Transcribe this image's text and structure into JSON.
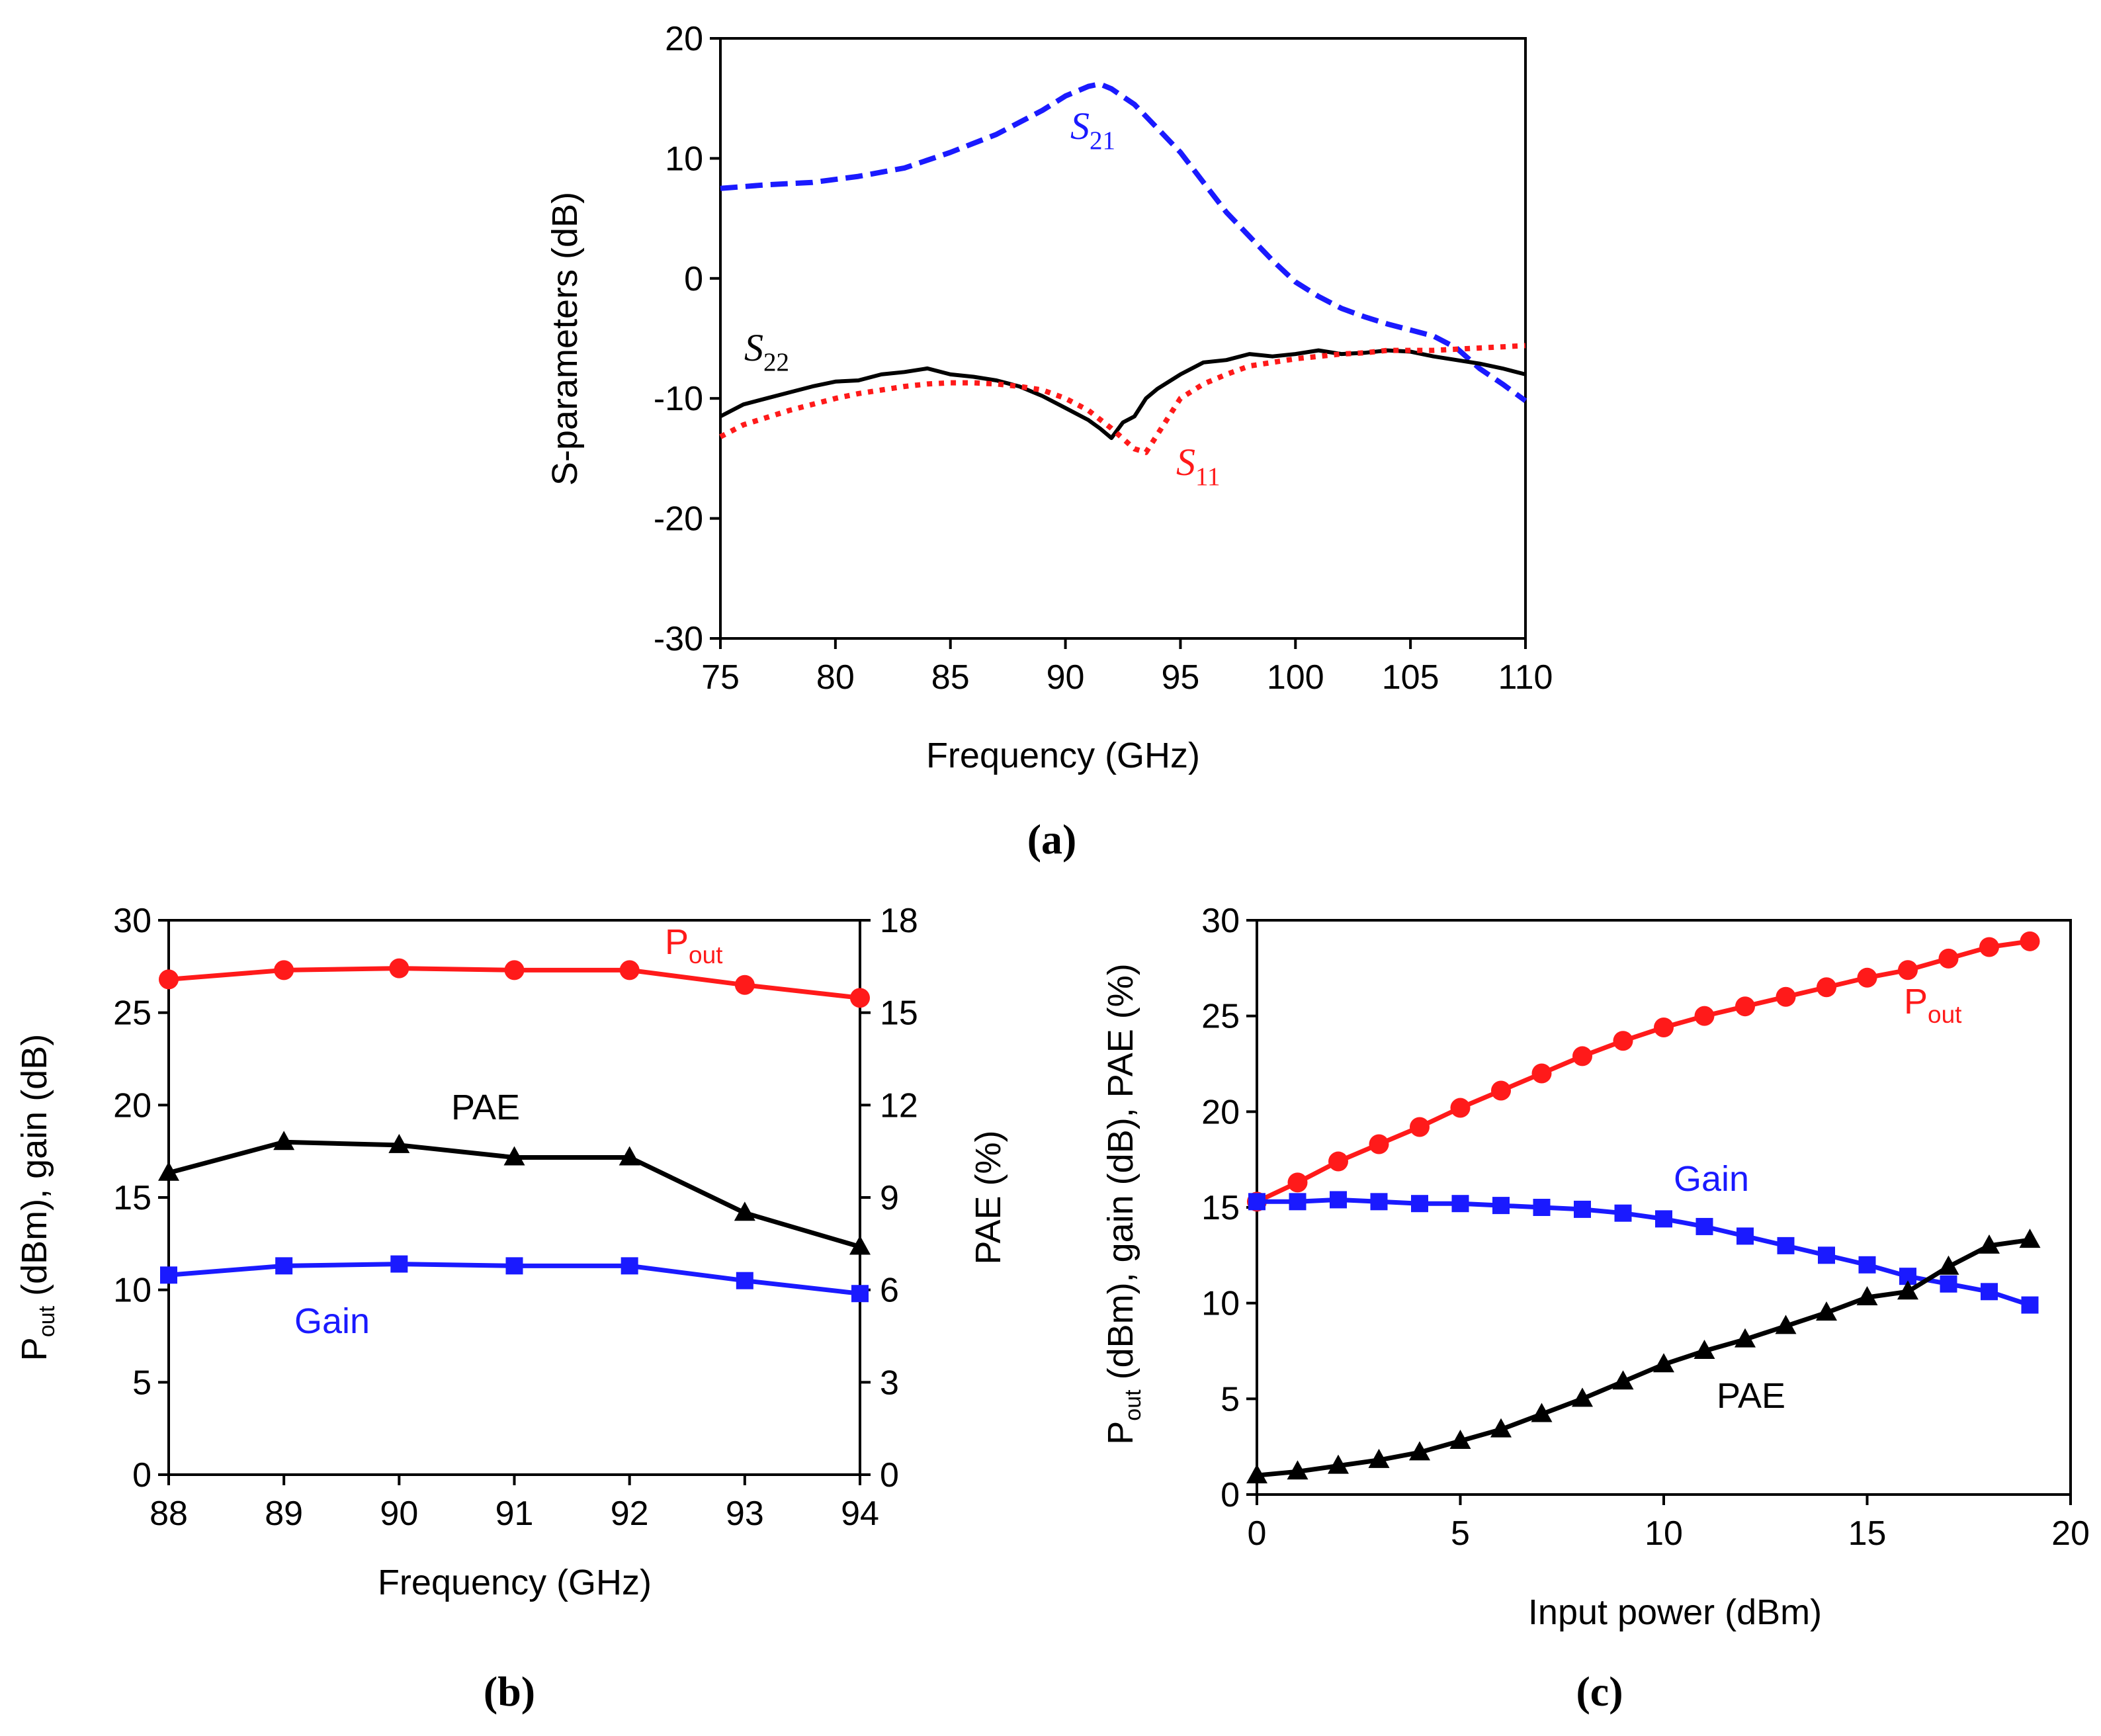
{
  "chart_data": [
    {
      "id": "a",
      "type": "line",
      "panel_label": "(a)",
      "title": "",
      "xlabel": "Frequency (GHz)",
      "ylabel": "S-parameters (dB)",
      "xlim": [
        75,
        110
      ],
      "ylim": [
        -30,
        20
      ],
      "xticks": [
        75,
        80,
        85,
        90,
        95,
        100,
        105,
        110
      ],
      "yticks": [
        -30,
        -20,
        -10,
        0,
        10,
        20
      ],
      "grid": false,
      "series": [
        {
          "name": "S21",
          "label_main": "S",
          "label_sub": "21",
          "color": "#1a1aff",
          "style": "dashed",
          "x": [
            75,
            77,
            79,
            81,
            83,
            85,
            87,
            89,
            90,
            91,
            91.5,
            92,
            93,
            94,
            95,
            96,
            97,
            98,
            99,
            100,
            101,
            102,
            103,
            104,
            105,
            106,
            107,
            108,
            109,
            110
          ],
          "y": [
            7.5,
            7.8,
            8.0,
            8.5,
            9.2,
            10.5,
            12.0,
            14.0,
            15.2,
            16.0,
            16.2,
            15.8,
            14.5,
            12.5,
            10.5,
            8.0,
            5.5,
            3.5,
            1.5,
            -0.3,
            -1.5,
            -2.5,
            -3.2,
            -3.8,
            -4.3,
            -4.8,
            -5.8,
            -7.5,
            -8.8,
            -10.2
          ]
        },
        {
          "name": "S22",
          "label_main": "S",
          "label_sub": "22",
          "color": "#000000",
          "style": "solid",
          "x": [
            75,
            76,
            77,
            78,
            79,
            80,
            81,
            82,
            83,
            84,
            85,
            86,
            87,
            88,
            89,
            90,
            91,
            91.5,
            92,
            92.5,
            93,
            93.5,
            94,
            95,
            96,
            97,
            98,
            99,
            100,
            101,
            102,
            103,
            104,
            105,
            106,
            107,
            108,
            109,
            110
          ],
          "y": [
            -11.5,
            -10.5,
            -10.0,
            -9.5,
            -9.0,
            -8.6,
            -8.5,
            -8.0,
            -7.8,
            -7.5,
            -8.0,
            -8.2,
            -8.5,
            -9.0,
            -9.8,
            -10.8,
            -11.8,
            -12.5,
            -13.3,
            -12.0,
            -11.5,
            -10.0,
            -9.2,
            -8.0,
            -7.0,
            -6.8,
            -6.3,
            -6.5,
            -6.3,
            -6.0,
            -6.3,
            -6.2,
            -6.0,
            -6.1,
            -6.5,
            -6.8,
            -7.1,
            -7.5,
            -8.0
          ]
        },
        {
          "name": "S11",
          "label_main": "S",
          "label_sub": "11",
          "color": "#ff1a1a",
          "style": "dotted",
          "x": [
            75,
            76,
            77,
            78,
            79,
            80,
            81,
            82,
            83,
            84,
            85,
            86,
            87,
            88,
            89,
            90,
            91,
            92,
            93,
            93.5,
            94,
            95,
            96,
            97,
            98,
            99,
            100,
            101,
            102,
            103,
            104,
            105,
            106,
            107,
            108,
            109,
            110
          ],
          "y": [
            -13.2,
            -12.2,
            -11.6,
            -11.0,
            -10.5,
            -10.0,
            -9.6,
            -9.3,
            -9.0,
            -8.8,
            -8.7,
            -8.7,
            -8.8,
            -9.0,
            -9.3,
            -10.0,
            -11.0,
            -12.5,
            -14.2,
            -14.5,
            -13.0,
            -10.0,
            -8.8,
            -8.0,
            -7.3,
            -7.0,
            -6.7,
            -6.5,
            -6.3,
            -6.2,
            -6.0,
            -6.0,
            -6.0,
            -5.9,
            -5.8,
            -5.7,
            -5.6
          ]
        }
      ]
    },
    {
      "id": "b",
      "type": "line",
      "panel_label": "(b)",
      "title": "",
      "xlabel": "Frequency (GHz)",
      "ylabel_main": "P",
      "ylabel_sub": "out",
      "ylabel_rest": " (dBm), gain (dB)",
      "y2label": "PAE (%)",
      "xlim": [
        88,
        94
      ],
      "ylim": [
        0,
        30
      ],
      "y2lim": [
        0,
        18
      ],
      "xticks": [
        88,
        89,
        90,
        91,
        92,
        93,
        94
      ],
      "yticks": [
        0,
        5,
        10,
        15,
        20,
        25,
        30
      ],
      "y2ticks": [
        0,
        3,
        6,
        9,
        12,
        15,
        18
      ],
      "grid": false,
      "series": [
        {
          "name": "Pout",
          "label_main": "P",
          "label_sub": "out",
          "color": "#ff1a1a",
          "marker": "circle",
          "axis": "left",
          "x": [
            88,
            89,
            90,
            91,
            92,
            93,
            94
          ],
          "y": [
            26.8,
            27.3,
            27.4,
            27.3,
            27.3,
            26.5,
            25.8
          ]
        },
        {
          "name": "PAE",
          "label": "PAE",
          "color": "#000000",
          "marker": "triangle",
          "axis": "right",
          "x": [
            88,
            89,
            90,
            91,
            92,
            93,
            94
          ],
          "y": [
            9.8,
            10.8,
            10.7,
            10.3,
            10.3,
            8.5,
            7.4
          ]
        },
        {
          "name": "Gain",
          "label": "Gain",
          "color": "#1a1aff",
          "marker": "square",
          "axis": "left",
          "x": [
            88,
            89,
            90,
            91,
            92,
            93,
            94
          ],
          "y": [
            10.8,
            11.3,
            11.4,
            11.3,
            11.3,
            10.5,
            9.8
          ]
        }
      ]
    },
    {
      "id": "c",
      "type": "line",
      "panel_label": "(c)",
      "title": "",
      "xlabel": "Input power (dBm)",
      "ylabel_main": "P",
      "ylabel_sub": "out",
      "ylabel_rest": " (dBm), gain (dB), PAE (%)",
      "xlim": [
        0,
        20
      ],
      "ylim": [
        0,
        30
      ],
      "xticks": [
        0,
        5,
        10,
        15,
        20
      ],
      "yticks": [
        0,
        5,
        10,
        15,
        20,
        25,
        30
      ],
      "grid": false,
      "series": [
        {
          "name": "Pout",
          "label_main": "P",
          "label_sub": "out",
          "color": "#ff1a1a",
          "marker": "circle",
          "x": [
            0,
            1,
            2,
            3,
            4,
            5,
            6,
            7,
            8,
            9,
            10,
            11,
            12,
            13,
            14,
            15,
            16,
            17,
            18,
            19
          ],
          "y": [
            15.3,
            16.3,
            17.4,
            18.3,
            19.2,
            20.2,
            21.1,
            22.0,
            22.9,
            23.7,
            24.4,
            25.0,
            25.5,
            26.0,
            26.5,
            27.0,
            27.4,
            28.0,
            28.6,
            28.9
          ]
        },
        {
          "name": "Gain",
          "label": "Gain",
          "color": "#1a1aff",
          "marker": "square",
          "x": [
            0,
            1,
            2,
            3,
            4,
            5,
            6,
            7,
            8,
            9,
            10,
            11,
            12,
            13,
            14,
            15,
            16,
            17,
            18,
            19
          ],
          "y": [
            15.3,
            15.3,
            15.4,
            15.3,
            15.2,
            15.2,
            15.1,
            15.0,
            14.9,
            14.7,
            14.4,
            14.0,
            13.5,
            13.0,
            12.5,
            12.0,
            11.4,
            11.0,
            10.6,
            9.9
          ]
        },
        {
          "name": "PAE",
          "label": "PAE",
          "color": "#000000",
          "marker": "triangle",
          "x": [
            0,
            1,
            2,
            3,
            4,
            5,
            6,
            7,
            8,
            9,
            10,
            11,
            12,
            13,
            14,
            15,
            16,
            17,
            18,
            19
          ],
          "y": [
            1.0,
            1.2,
            1.5,
            1.8,
            2.2,
            2.8,
            3.4,
            4.2,
            5.0,
            5.9,
            6.8,
            7.5,
            8.1,
            8.8,
            9.5,
            10.3,
            10.6,
            11.9,
            13.0,
            13.3
          ]
        }
      ]
    }
  ]
}
